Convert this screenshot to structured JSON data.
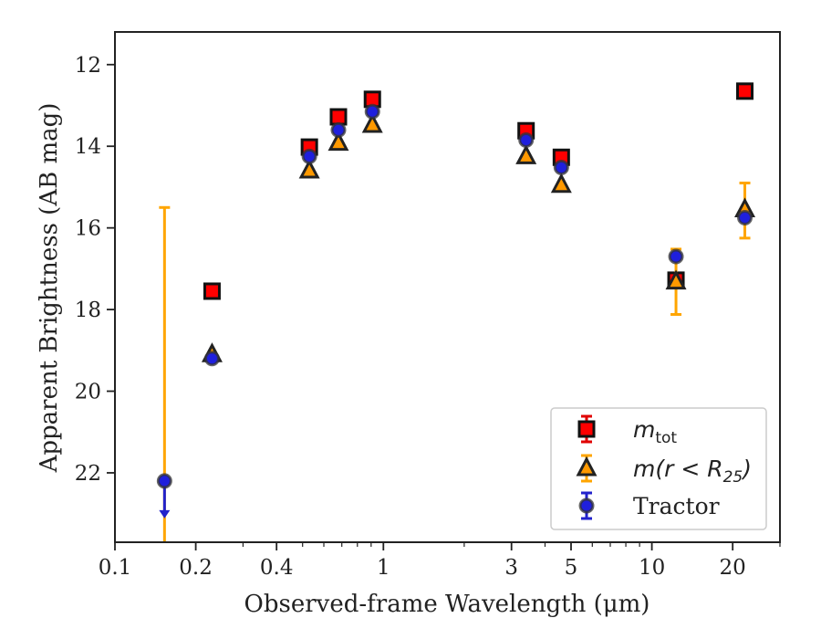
{
  "chart_data": {
    "type": "scatter",
    "title": "",
    "xlabel": "Observed-frame Wavelength (μm)",
    "ylabel": "Apparent Brightness (AB mag)",
    "xscale": "log",
    "xlim": [
      0.1,
      30
    ],
    "ylim": [
      23.7,
      11.2
    ],
    "y_inverted": true,
    "grid": false,
    "legend_position": "lower-right",
    "x_ticks": [
      {
        "value": 0.1,
        "label": "0.1"
      },
      {
        "value": 0.2,
        "label": "0.2"
      },
      {
        "value": 0.4,
        "label": "0.4"
      },
      {
        "value": 1,
        "label": "1"
      },
      {
        "value": 3,
        "label": "3"
      },
      {
        "value": 5,
        "label": "5"
      },
      {
        "value": 10,
        "label": "10"
      },
      {
        "value": 20,
        "label": "20"
      }
    ],
    "y_ticks": [
      {
        "value": 12,
        "label": "12"
      },
      {
        "value": 14,
        "label": "14"
      },
      {
        "value": 16,
        "label": "16"
      },
      {
        "value": 18,
        "label": "18"
      },
      {
        "value": 20,
        "label": "20"
      },
      {
        "value": 22,
        "label": "22"
      }
    ],
    "series": [
      {
        "name": "m_tot",
        "marker": "square",
        "color": "#ff0000",
        "edge_color": "#111111",
        "error_color": "#e00000",
        "points": [
          {
            "x": 0.23,
            "y": 17.55
          },
          {
            "x": 0.53,
            "y": 14.02
          },
          {
            "x": 0.68,
            "y": 13.28
          },
          {
            "x": 0.91,
            "y": 12.85
          },
          {
            "x": 3.4,
            "y": 13.62
          },
          {
            "x": 4.6,
            "y": 14.27
          },
          {
            "x": 12.3,
            "y": 17.28
          },
          {
            "x": 22.2,
            "y": 12.65
          }
        ]
      },
      {
        "name": "m(r < R25)",
        "marker": "triangle",
        "color": "#ff9900",
        "edge_color": "#222222",
        "error_color": "#ffa500",
        "points": [
          {
            "x": 0.23,
            "y": 19.1
          },
          {
            "x": 0.53,
            "y": 14.6
          },
          {
            "x": 0.68,
            "y": 13.92
          },
          {
            "x": 0.91,
            "y": 13.48
          },
          {
            "x": 3.4,
            "y": 14.25
          },
          {
            "x": 4.6,
            "y": 14.95
          },
          {
            "x": 12.3,
            "y": 17.32,
            "err_low": 0.8,
            "err_high": 0.8
          },
          {
            "x": 22.2,
            "y": 15.55,
            "err_low": 0.65,
            "err_high": 0.7
          }
        ]
      },
      {
        "name": "Tractor",
        "marker": "circle",
        "color": "#1f1fdd",
        "edge_color": "#333333",
        "error_color": "#2222cc",
        "points": [
          {
            "x": 0.153,
            "y": 22.2,
            "upper_limit": true
          },
          {
            "x": 0.23,
            "y": 19.2
          },
          {
            "x": 0.53,
            "y": 14.25
          },
          {
            "x": 0.68,
            "y": 13.6
          },
          {
            "x": 0.91,
            "y": 13.15
          },
          {
            "x": 3.4,
            "y": 13.85
          },
          {
            "x": 4.6,
            "y": 14.52
          },
          {
            "x": 12.3,
            "y": 16.7
          },
          {
            "x": 22.2,
            "y": 15.75
          }
        ]
      }
    ],
    "vertical_ranges": [
      {
        "x": 0.153,
        "y_min": 15.5,
        "y_max": 23.7,
        "color": "#ffa500"
      }
    ]
  }
}
